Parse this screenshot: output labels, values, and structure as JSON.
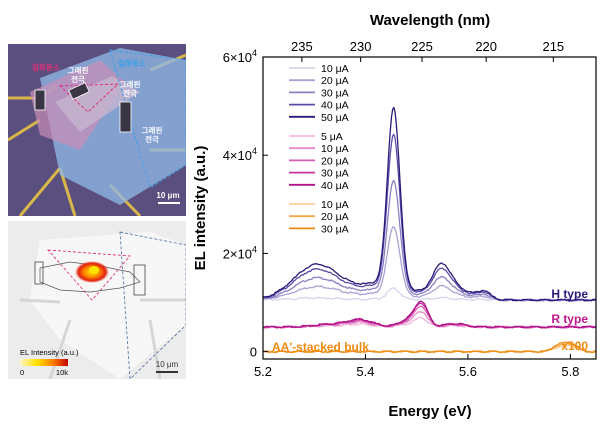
{
  "optical_image": {
    "labels": {
      "hbn_left": "질화붕소",
      "hbn_right": "질화붕소",
      "graphene_left_1": "그래핀",
      "graphene_left_2": "전극",
      "graphene_mid_1": "그래핀",
      "graphene_mid_2": "전극",
      "graphene_right_1": "그래핀",
      "graphene_right_2": "전극"
    },
    "scale_bar": "10 μm",
    "colors": {
      "hbn_left": "#e0307a",
      "hbn_right": "#3aa0e8",
      "substrate": "#5a4f7e"
    }
  },
  "el_map": {
    "colorbar_title": "EL Intensity (a.u.)",
    "colorbar_min": "0",
    "colorbar_max": "10k",
    "scale_bar": "10 μm",
    "colors": {
      "low": "#ffe000",
      "high": "#c40000"
    }
  },
  "chart_data": {
    "type": "line",
    "title": "",
    "xlabel": "Energy (eV)",
    "ylabel": "EL intensity (a.u.)",
    "top_xlabel": "Wavelength (nm)",
    "xlim": [
      5.2,
      5.85
    ],
    "ylim": [
      -1500,
      60000
    ],
    "x_ticks": [
      "5.2",
      "5.4",
      "5.6",
      "5.8"
    ],
    "x_tick_values": [
      5.2,
      5.4,
      5.6,
      5.8
    ],
    "y_ticks": [
      {
        "value": 0,
        "mantissa": "0",
        "exponent": ""
      },
      {
        "value": 20000,
        "mantissa": "2×10",
        "exponent": "4"
      },
      {
        "value": 40000,
        "mantissa": "4×10",
        "exponent": "4"
      },
      {
        "value": 60000,
        "mantissa": "6×10",
        "exponent": "4"
      }
    ],
    "top_ticks": [
      "235",
      "230",
      "225",
      "220",
      "215"
    ],
    "top_tick_values": [
      235,
      230,
      225,
      220,
      215
    ],
    "groups": [
      {
        "name": "H type",
        "offset": 10500,
        "label_color": "#2b1a7a",
        "series": [
          {
            "name": "10 μA",
            "color": "#d8d4ec",
            "scale": 0.06
          },
          {
            "name": "20 μA",
            "color": "#aaa2d4",
            "scale": 0.38
          },
          {
            "name": "30 μA",
            "color": "#8a80c2",
            "scale": 0.62
          },
          {
            "name": "40 μA",
            "color": "#5b4ca6",
            "scale": 0.86
          },
          {
            "name": "50 μA",
            "color": "#2b1a7a",
            "scale": 1.0
          }
        ],
        "peaks": [
          {
            "center": 5.305,
            "width": 0.045,
            "height": 7200
          },
          {
            "center": 5.455,
            "width": 0.012,
            "height": 36000
          },
          {
            "center": 5.44,
            "width": 0.05,
            "height": 3500
          },
          {
            "center": 5.548,
            "width": 0.018,
            "height": 6000
          },
          {
            "center": 5.58,
            "width": 0.03,
            "height": 2000
          },
          {
            "center": 5.632,
            "width": 0.012,
            "height": 1500
          }
        ]
      },
      {
        "name": "R type",
        "offset": 5000,
        "label_color": "#c0188c",
        "series": [
          {
            "name": "5 μA",
            "color": "#f2b8dc",
            "scale": 0.35
          },
          {
            "name": "10 μA",
            "color": "#e58ac8",
            "scale": 0.6
          },
          {
            "name": "20 μA",
            "color": "#d85cb4",
            "scale": 0.8
          },
          {
            "name": "30 μA",
            "color": "#c8349e",
            "scale": 0.92
          },
          {
            "name": "40 μA",
            "color": "#b01088",
            "scale": 1.0
          }
        ],
        "peaks": [
          {
            "center": 5.51,
            "width": 0.012,
            "height": 4200
          },
          {
            "center": 5.39,
            "width": 0.025,
            "height": 1500
          },
          {
            "center": 5.49,
            "width": 0.02,
            "height": 1800
          },
          {
            "center": 5.575,
            "width": 0.02,
            "height": 700
          },
          {
            "center": 5.33,
            "width": 0.03,
            "height": 600
          }
        ]
      },
      {
        "name": "AA'-stacked bulk",
        "offset": 0,
        "label_color": "#f08a10",
        "annotation": "x100",
        "series": [
          {
            "name": "10 μA",
            "color": "#fbd19a",
            "scale": 0.6
          },
          {
            "name": "20 μA",
            "color": "#f5a84a",
            "scale": 0.8
          },
          {
            "name": "30 μA",
            "color": "#ee8a10",
            "scale": 1.0
          }
        ],
        "peaks": [
          {
            "center": 5.775,
            "width": 0.01,
            "height": 1300
          },
          {
            "center": 5.8,
            "width": 0.012,
            "height": 1900
          }
        ]
      }
    ]
  }
}
